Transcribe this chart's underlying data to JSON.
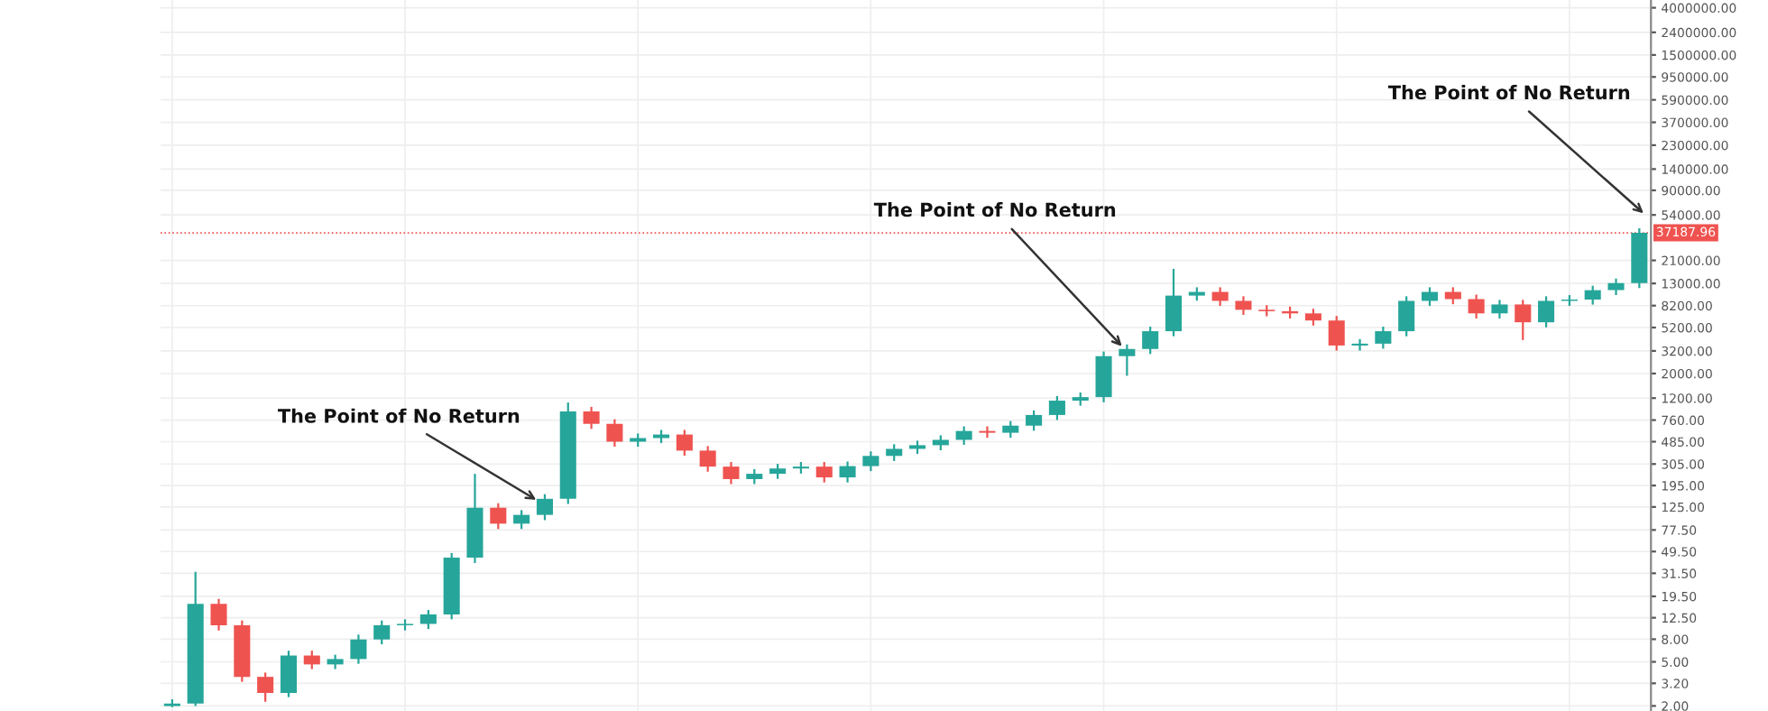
{
  "chart_data": {
    "type": "candlestick",
    "categories": [
      null,
      null,
      null,
      null,
      null,
      null,
      null,
      null,
      null,
      null,
      null,
      null,
      null,
      null,
      null,
      null,
      null,
      null,
      null,
      null,
      null,
      null,
      null,
      null,
      null,
      null,
      null,
      null,
      null,
      null,
      null,
      null,
      null,
      null,
      null,
      null,
      null,
      null,
      null,
      null,
      null,
      null,
      null,
      null,
      null,
      null,
      null,
      null,
      null,
      null,
      null,
      null,
      null,
      null,
      null,
      null,
      null,
      null,
      null,
      null,
      null,
      null,
      null,
      null
    ],
    "ohlc": [
      [
        2.0,
        2.3,
        1.95,
        2.1
      ],
      [
        2.1,
        32.5,
        2.0,
        16.7
      ],
      [
        16.7,
        18.5,
        9.6,
        10.7
      ],
      [
        10.7,
        11.8,
        3.3,
        3.66
      ],
      [
        3.66,
        4.0,
        2.18,
        2.62
      ],
      [
        2.62,
        6.3,
        2.4,
        5.7
      ],
      [
        5.7,
        6.3,
        4.3,
        4.74
      ],
      [
        4.74,
        5.8,
        4.3,
        5.3
      ],
      [
        5.3,
        8.8,
        4.8,
        7.96
      ],
      [
        7.96,
        11.8,
        7.2,
        10.7
      ],
      [
        10.7,
        12.1,
        9.6,
        11.0
      ],
      [
        11.0,
        14.7,
        9.9,
        13.4
      ],
      [
        13.4,
        48,
        12.1,
        43.7
      ],
      [
        43.7,
        249,
        39,
        123
      ],
      [
        123,
        135,
        79,
        88.3
      ],
      [
        88.3,
        117,
        79,
        106
      ],
      [
        106,
        163,
        95,
        148
      ],
      [
        148,
        1095,
        133,
        910
      ],
      [
        910,
        1000,
        633,
        703
      ],
      [
        703,
        773,
        437,
        485
      ],
      [
        485,
        575,
        437,
        523
      ],
      [
        523,
        620,
        471,
        563
      ],
      [
        563,
        620,
        363,
        403
      ],
      [
        403,
        443,
        260,
        289
      ],
      [
        289,
        318,
        201,
        223
      ],
      [
        223,
        274,
        201,
        249
      ],
      [
        249,
        306,
        224,
        278
      ],
      [
        278,
        318,
        250,
        289
      ],
      [
        289,
        318,
        208,
        231
      ],
      [
        231,
        321,
        208,
        292
      ],
      [
        292,
        397,
        263,
        361
      ],
      [
        361,
        460,
        325,
        418
      ],
      [
        418,
        496,
        376,
        451
      ],
      [
        451,
        554,
        406,
        504
      ],
      [
        504,
        667,
        454,
        606
      ],
      [
        606,
        667,
        526,
        584
      ],
      [
        584,
        745,
        526,
        677
      ],
      [
        677,
        930,
        609,
        845
      ],
      [
        845,
        1252,
        761,
        1138
      ],
      [
        1138,
        1348,
        1024,
        1225
      ],
      [
        1225,
        3160,
        1100,
        2870
      ],
      [
        2870,
        3660,
        1910,
        3330
      ],
      [
        3330,
        5300,
        3000,
        4820
      ],
      [
        4820,
        17600,
        4340,
        10100
      ],
      [
        10100,
        12000,
        9090,
        10900
      ],
      [
        10900,
        12000,
        8150,
        9050
      ],
      [
        9050,
        9960,
        6770,
        7520
      ],
      [
        7520,
        8270,
        6570,
        7300
      ],
      [
        7300,
        8030,
        6280,
        6980
      ],
      [
        6980,
        7680,
        5420,
        6020
      ],
      [
        6020,
        6620,
        3220,
        3580
      ],
      [
        3580,
        4090,
        3220,
        3720
      ],
      [
        3720,
        5300,
        3350,
        4820
      ],
      [
        4820,
        9960,
        4340,
        9050
      ],
      [
        9050,
        12000,
        8150,
        10900
      ],
      [
        10900,
        12000,
        8450,
        9390
      ],
      [
        9390,
        10300,
        6280,
        6980
      ],
      [
        6980,
        9240,
        6280,
        8400
      ],
      [
        8400,
        9240,
        4010,
        5800
      ],
      [
        5800,
        9960,
        5220,
        9050
      ],
      [
        9050,
        10200,
        8150,
        9300
      ],
      [
        9300,
        12400,
        8370,
        11300
      ],
      [
        11300,
        14400,
        10200,
        13100
      ],
      [
        13100,
        40900,
        11800,
        37188
      ]
    ],
    "colors": [
      "#26a69a",
      "#26a69a",
      "#ef5350",
      "#ef5350",
      "#ef5350",
      "#26a69a",
      "#ef5350",
      "#26a69a",
      "#26a69a",
      "#26a69a",
      "#26a69a",
      "#26a69a",
      "#26a69a",
      "#26a69a",
      "#ef5350",
      "#26a69a",
      "#26a69a",
      "#26a69a",
      "#ef5350",
      "#ef5350",
      "#26a69a",
      "#26a69a",
      "#ef5350",
      "#ef5350",
      "#ef5350",
      "#26a69a",
      "#26a69a",
      "#26a69a",
      "#ef5350",
      "#26a69a",
      "#26a69a",
      "#26a69a",
      "#26a69a",
      "#26a69a",
      "#26a69a",
      "#ef5350",
      "#26a69a",
      "#26a69a",
      "#26a69a",
      "#26a69a",
      "#26a69a",
      "#26a69a",
      "#26a69a",
      "#26a69a",
      "#26a69a",
      "#ef5350",
      "#ef5350",
      "#ef5350",
      "#ef5350",
      "#ef5350",
      "#ef5350",
      "#26a69a",
      "#26a69a",
      "#26a69a",
      "#26a69a",
      "#ef5350",
      "#ef5350",
      "#26a69a",
      "#ef5350",
      "#26a69a",
      "#26a69a",
      "#26a69a",
      "#26a69a",
      "#26a69a"
    ],
    "log": "y",
    "ylim": [
      1.8,
      4700000
    ],
    "yticks": [
      {
        "value": 2,
        "label": "2.00"
      },
      {
        "value": 3.2,
        "label": "3.20"
      },
      {
        "value": 5,
        "label": "5.00"
      },
      {
        "value": 8,
        "label": "8.00"
      },
      {
        "value": 12.5,
        "label": "12.50"
      },
      {
        "value": 19.5,
        "label": "19.50"
      },
      {
        "value": 31.5,
        "label": "31.50"
      },
      {
        "value": 49.5,
        "label": "49.50"
      },
      {
        "value": 77.5,
        "label": "77.50"
      },
      {
        "value": 125,
        "label": "125.00"
      },
      {
        "value": 195,
        "label": "195.00"
      },
      {
        "value": 305,
        "label": "305.00"
      },
      {
        "value": 485,
        "label": "485.00"
      },
      {
        "value": 760,
        "label": "760.00"
      },
      {
        "value": 1200,
        "label": "1200.00"
      },
      {
        "value": 2000,
        "label": "2000.00"
      },
      {
        "value": 3200,
        "label": "3200.00"
      },
      {
        "value": 5200,
        "label": "5200.00"
      },
      {
        "value": 8200,
        "label": "8200.00"
      },
      {
        "value": 13000,
        "label": "13000.00"
      },
      {
        "value": 21000,
        "label": "21000.00"
      },
      {
        "value": 54000,
        "label": "54000.00"
      },
      {
        "value": 90000,
        "label": "90000.00"
      },
      {
        "value": 140000,
        "label": "140000.00"
      },
      {
        "value": 230000,
        "label": "230000.00"
      },
      {
        "value": 370000,
        "label": "370000.00"
      },
      {
        "value": 590000,
        "label": "590000.00"
      },
      {
        "value": 950000,
        "label": "950000.00"
      },
      {
        "value": 1500000,
        "label": "1500000.00"
      },
      {
        "value": 2400000,
        "label": "2400000.00"
      },
      {
        "value": 4000000,
        "label": "4000000.00"
      }
    ],
    "ref_lines": [
      {
        "axis": "y",
        "value": 37187.96,
        "label": "37187.96",
        "color": "#ef5350",
        "line_style": "dotted"
      }
    ],
    "grid": true,
    "tick_labels": "y",
    "annotations": [
      "The Point of No Return",
      "The Point of No Return",
      "The Point of No Return"
    ]
  }
}
